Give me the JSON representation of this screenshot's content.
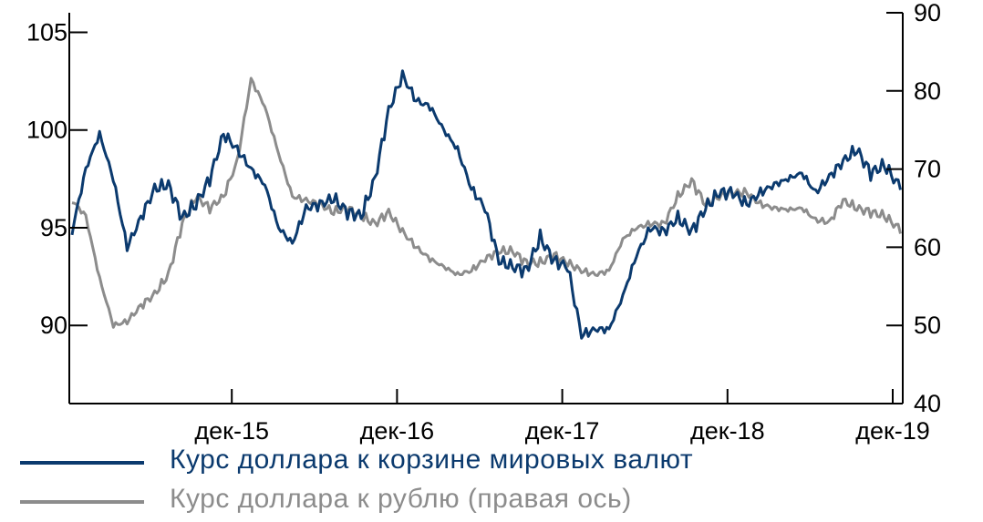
{
  "chart_data": {
    "type": "line",
    "title": "",
    "xlabel": "",
    "x_ticks": [
      "дек-15",
      "дек-16",
      "дек-17",
      "дек-18",
      "дек-19"
    ],
    "y_left": {
      "ylim": [
        86,
        106
      ],
      "ticks": [
        90,
        95,
        100,
        105
      ]
    },
    "y_right": {
      "ylim": [
        40,
        90
      ],
      "ticks": [
        40,
        50,
        60,
        70,
        80,
        90
      ]
    },
    "grid": false,
    "legend_position": "bottom-left",
    "colors": {
      "dxy": "#0b3a6e",
      "rub": "#8c8c8c"
    },
    "series": [
      {
        "name": "Курс доллара к корзине мировых валют",
        "axis": "left",
        "x": [
          "2014-12",
          "2015-01",
          "2015-02",
          "2015-03",
          "2015-04",
          "2015-05",
          "2015-06",
          "2015-07",
          "2015-08",
          "2015-09",
          "2015-10",
          "2015-11",
          "2015-12",
          "2016-01",
          "2016-02",
          "2016-03",
          "2016-04",
          "2016-05",
          "2016-06",
          "2016-07",
          "2016-08",
          "2016-09",
          "2016-10",
          "2016-11",
          "2016-12",
          "2017-01",
          "2017-02",
          "2017-03",
          "2017-04",
          "2017-05",
          "2017-06",
          "2017-07",
          "2017-08",
          "2017-09",
          "2017-10",
          "2017-11",
          "2017-12",
          "2018-01",
          "2018-02",
          "2018-03",
          "2018-04",
          "2018-05",
          "2018-06",
          "2018-07",
          "2018-08",
          "2018-09",
          "2018-10",
          "2018-11",
          "2018-12",
          "2019-01",
          "2019-02",
          "2019-03",
          "2019-04",
          "2019-05",
          "2019-06",
          "2019-07",
          "2019-08",
          "2019-09",
          "2019-10",
          "2019-11",
          "2019-12",
          "2020-01"
        ],
        "values": [
          94.8,
          98.0,
          99.8,
          97.5,
          94.0,
          95.5,
          97.0,
          97.2,
          95.5,
          96.2,
          97.5,
          99.8,
          99.0,
          98.0,
          97.2,
          95.0,
          94.2,
          96.0,
          96.2,
          96.5,
          95.8,
          95.6,
          97.5,
          101.0,
          102.8,
          101.5,
          101.2,
          100.0,
          99.0,
          97.0,
          96.0,
          93.3,
          93.0,
          92.8,
          94.5,
          93.3,
          93.0,
          89.5,
          89.8,
          89.8,
          91.5,
          93.6,
          95.0,
          94.8,
          95.5,
          94.8,
          96.0,
          96.8,
          96.8,
          96.2,
          96.8,
          97.2,
          97.5,
          97.8,
          96.8,
          97.6,
          98.4,
          99.0,
          97.8,
          98.2,
          97.2,
          97.8
        ]
      },
      {
        "name": "Курс доллара к рублю (правая ось)",
        "axis": "right",
        "x": [
          "2014-12",
          "2015-01",
          "2015-02",
          "2015-03",
          "2015-04",
          "2015-05",
          "2015-06",
          "2015-07",
          "2015-08",
          "2015-09",
          "2015-10",
          "2015-11",
          "2015-12",
          "2016-01",
          "2016-02",
          "2016-03",
          "2016-04",
          "2016-05",
          "2016-06",
          "2016-07",
          "2016-08",
          "2016-09",
          "2016-10",
          "2016-11",
          "2016-12",
          "2017-01",
          "2017-02",
          "2017-03",
          "2017-04",
          "2017-05",
          "2017-06",
          "2017-07",
          "2017-08",
          "2017-09",
          "2017-10",
          "2017-11",
          "2017-12",
          "2018-01",
          "2018-02",
          "2018-03",
          "2018-04",
          "2018-05",
          "2018-06",
          "2018-07",
          "2018-08",
          "2018-09",
          "2018-10",
          "2018-11",
          "2018-12",
          "2019-01",
          "2019-02",
          "2019-03",
          "2019-04",
          "2019-05",
          "2019-06",
          "2019-07",
          "2019-08",
          "2019-09",
          "2019-10",
          "2019-11",
          "2019-12",
          "2020-01"
        ],
        "values": [
          66.0,
          64.0,
          56.0,
          50.0,
          50.5,
          52.5,
          54.0,
          56.5,
          63.0,
          66.5,
          65.0,
          66.5,
          71.0,
          81.5,
          78.0,
          72.0,
          66.5,
          66.0,
          65.5,
          64.5,
          65.0,
          64.0,
          63.0,
          64.5,
          62.0,
          60.0,
          58.5,
          57.5,
          56.5,
          57.0,
          58.5,
          59.5,
          59.5,
          58.0,
          58.0,
          59.0,
          58.0,
          57.0,
          56.5,
          57.0,
          61.0,
          62.5,
          63.0,
          63.0,
          66.5,
          68.5,
          65.5,
          66.5,
          67.0,
          67.0,
          65.5,
          65.0,
          64.8,
          65.0,
          63.5,
          63.2,
          66.0,
          65.0,
          64.5,
          64.0,
          62.5,
          61.8
        ]
      }
    ]
  },
  "legend": [
    {
      "label": "Курс доллара к корзине мировых валют",
      "color": "#0b3a6e"
    },
    {
      "label": "Курс доллара к рублю (правая ось)",
      "color": "#8c8c8c"
    }
  ]
}
